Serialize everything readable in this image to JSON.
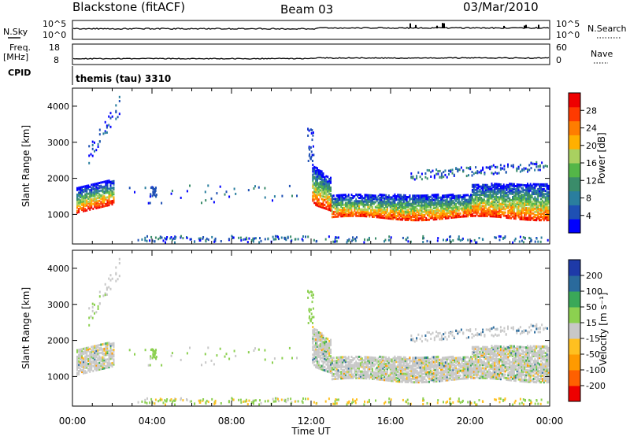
{
  "header": {
    "radar": "Blackstone (fitACF)",
    "beam": "Beam 03",
    "date": "03/Mar/2010"
  },
  "top_panels": {
    "nsky_label": "N.Sky",
    "nsearch_label": "N.Search",
    "noise_ticks": [
      "10^5",
      "10^0"
    ],
    "freq_label": "Freq.",
    "freq_unit": "[MHz]",
    "freq_ticks": [
      "18",
      "8"
    ],
    "nave_label": "Nave",
    "nave_ticks": [
      "60",
      "0"
    ],
    "cpid_label": "CPID",
    "cpid_value": "themis (tau) 3310"
  },
  "chart_data": [
    {
      "type": "heatmap",
      "name": "power",
      "ylabel": "Slant Range [km]",
      "xlabel": "",
      "yticks": [
        1000,
        2000,
        3000,
        4000
      ],
      "ylim": [
        180,
        4500
      ],
      "xlim_hours": [
        0,
        24
      ],
      "colorbar": {
        "label": "Power [dB]",
        "ticks": [
          "28",
          "24",
          "20",
          "16",
          "12",
          "8",
          "4"
        ],
        "colors": [
          "#0000ff",
          "#1e50b4",
          "#2a7e9e",
          "#3a8c6a",
          "#54b648",
          "#a9d060",
          "#ffb000",
          "#ff7d00",
          "#ff3a00",
          "#ee0000"
        ]
      }
    },
    {
      "type": "heatmap",
      "name": "velocity",
      "ylabel": "Slant Range [km]",
      "xlabel": "Time UT",
      "yticks": [
        1000,
        2000,
        3000,
        4000
      ],
      "ylim": [
        180,
        4500
      ],
      "xlim_hours": [
        0,
        24
      ],
      "xticks": [
        "00:00",
        "04:00",
        "08:00",
        "12:00",
        "16:00",
        "20:00",
        "00:00"
      ],
      "colorbar": {
        "label": "Velocity [m s⁻¹]",
        "ticks": [
          "200",
          "100",
          "50",
          "15",
          "-15",
          "-50",
          "-100",
          "-200"
        ],
        "colors": [
          "#ee0000",
          "#ff6000",
          "#ff9a00",
          "#ffc020",
          "#c8c8c8",
          "#8cd050",
          "#3aa858",
          "#2a6a9c",
          "#1e3aa8"
        ]
      }
    }
  ]
}
